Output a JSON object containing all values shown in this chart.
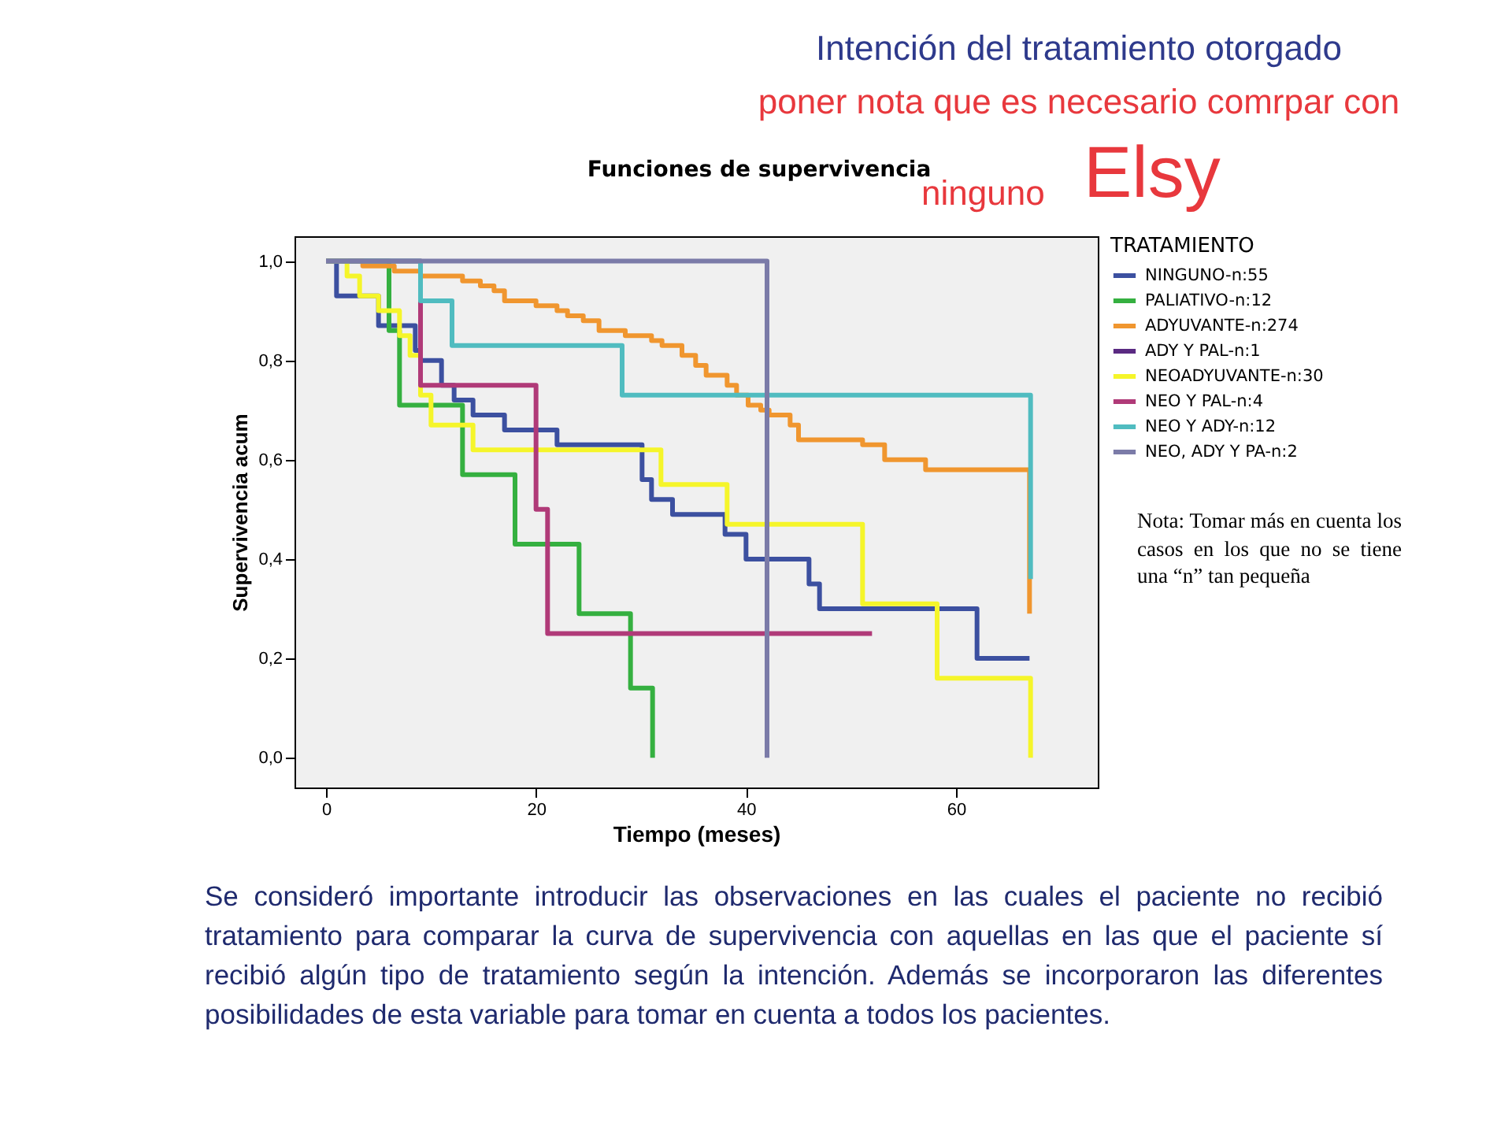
{
  "chart_data": {
    "type": "step",
    "title": "Funciones de supervivencia",
    "xlabel": "Tiempo (meses)",
    "ylabel": "Supervivencia acum",
    "legend_title": "TRATAMIENTO",
    "legend": "right",
    "grid": false,
    "marker": "none",
    "line_style": "solid",
    "xlim": [
      -3,
      73.5
    ],
    "xticks": [
      0,
      20,
      40,
      60
    ],
    "ylim": [
      -0.06,
      1.05
    ],
    "yticks": [
      {
        "value": 0,
        "label": "0,0"
      },
      {
        "value": 0.2,
        "label": "0,2"
      },
      {
        "value": 0.4,
        "label": "0,4"
      },
      {
        "value": 0.6,
        "label": "0,6"
      },
      {
        "value": 0.8,
        "label": "0,8"
      },
      {
        "value": 1,
        "label": "1,0"
      }
    ],
    "series": [
      {
        "name": "NINGUNO-n:55",
        "color": "#3c50a0",
        "x": [
          0,
          1,
          5,
          8.5,
          9,
          11,
          12.2,
          14,
          17,
          22,
          30.1,
          31,
          33,
          38,
          40,
          46,
          47,
          62,
          67
        ],
        "values": [
          1,
          0.93,
          0.87,
          0.82,
          0.8,
          0.75,
          0.72,
          0.69,
          0.66,
          0.63,
          0.56,
          0.52,
          0.49,
          0.45,
          0.4,
          0.35,
          0.3,
          0.2,
          0.2
        ]
      },
      {
        "name": "PALIATIVO-n:12",
        "color": "#35b040",
        "x": [
          0,
          6,
          7,
          13,
          18,
          24.1,
          29,
          31.1
        ],
        "values": [
          1,
          0.86,
          0.71,
          0.57,
          0.43,
          0.29,
          0.14,
          0
        ]
      },
      {
        "name": "ADYUVANTE-n:274",
        "color": "#f0962f",
        "x": [
          0,
          3.5,
          6.5,
          9,
          11,
          13,
          14.7,
          16,
          17,
          20,
          22,
          23,
          24.5,
          26,
          28.5,
          31,
          32,
          33.9,
          35.2,
          36.2,
          38.2,
          39.1,
          40.2,
          41.4,
          42.2,
          44.2,
          45,
          51.1,
          53.2,
          57.1,
          67
        ],
        "values": [
          1,
          0.99,
          0.98,
          0.97,
          0.97,
          0.96,
          0.95,
          0.94,
          0.92,
          0.91,
          0.9,
          0.89,
          0.88,
          0.86,
          0.85,
          0.84,
          0.83,
          0.81,
          0.79,
          0.77,
          0.75,
          0.73,
          0.71,
          0.7,
          0.69,
          0.67,
          0.64,
          0.63,
          0.6,
          0.58,
          0.29
        ]
      },
      {
        "name": "ADY Y PAL-n:1",
        "color": "#5a2a82"
      },
      {
        "name": "NEOADYUVANTE-n:30",
        "color": "#f5f52a",
        "x": [
          0,
          2,
          3.2,
          5,
          7,
          8,
          9,
          10,
          14,
          31.9,
          38.2,
          51.1,
          58.2,
          67.1
        ],
        "values": [
          1,
          0.97,
          0.93,
          0.9,
          0.85,
          0.81,
          0.73,
          0.67,
          0.62,
          0.55,
          0.47,
          0.31,
          0.16,
          0
        ]
      },
      {
        "name": "NEO Y PAL-n:4",
        "color": "#b03a78",
        "x": [
          0,
          9,
          20,
          21.1,
          52
        ],
        "values": [
          1,
          0.75,
          0.5,
          0.25,
          0.25
        ]
      },
      {
        "name": "NEO Y ADY-n:12",
        "color": "#50bcc0",
        "x": [
          0,
          9,
          12,
          28.2,
          67.1
        ],
        "values": [
          1,
          0.92,
          0.83,
          0.73,
          0.36
        ]
      },
      {
        "name": "NEO, ADY Y PA-n:2",
        "color": "#7b7ba8",
        "x": [
          0,
          42
        ],
        "values": [
          1,
          0
        ]
      }
    ],
    "annotations": [
      "Intención del tratamiento otorgado",
      "poner nota que es necesario comrpar con",
      "ninguno",
      "Elsy",
      "Nota: Tomar más en cuenta los casos en los que no se tiene una “n” tan pequeña",
      "Se consideró importante introducir  las observaciones en las cuales el paciente no recibió tratamiento para comparar la curva de supervivencia con aquellas en las que el paciente sí recibió algún tipo de tratamiento según la intención. Además se incorporaron las diferentes posibilidades de esta variable para tomar en cuenta a todos los pacientes."
    ]
  }
}
